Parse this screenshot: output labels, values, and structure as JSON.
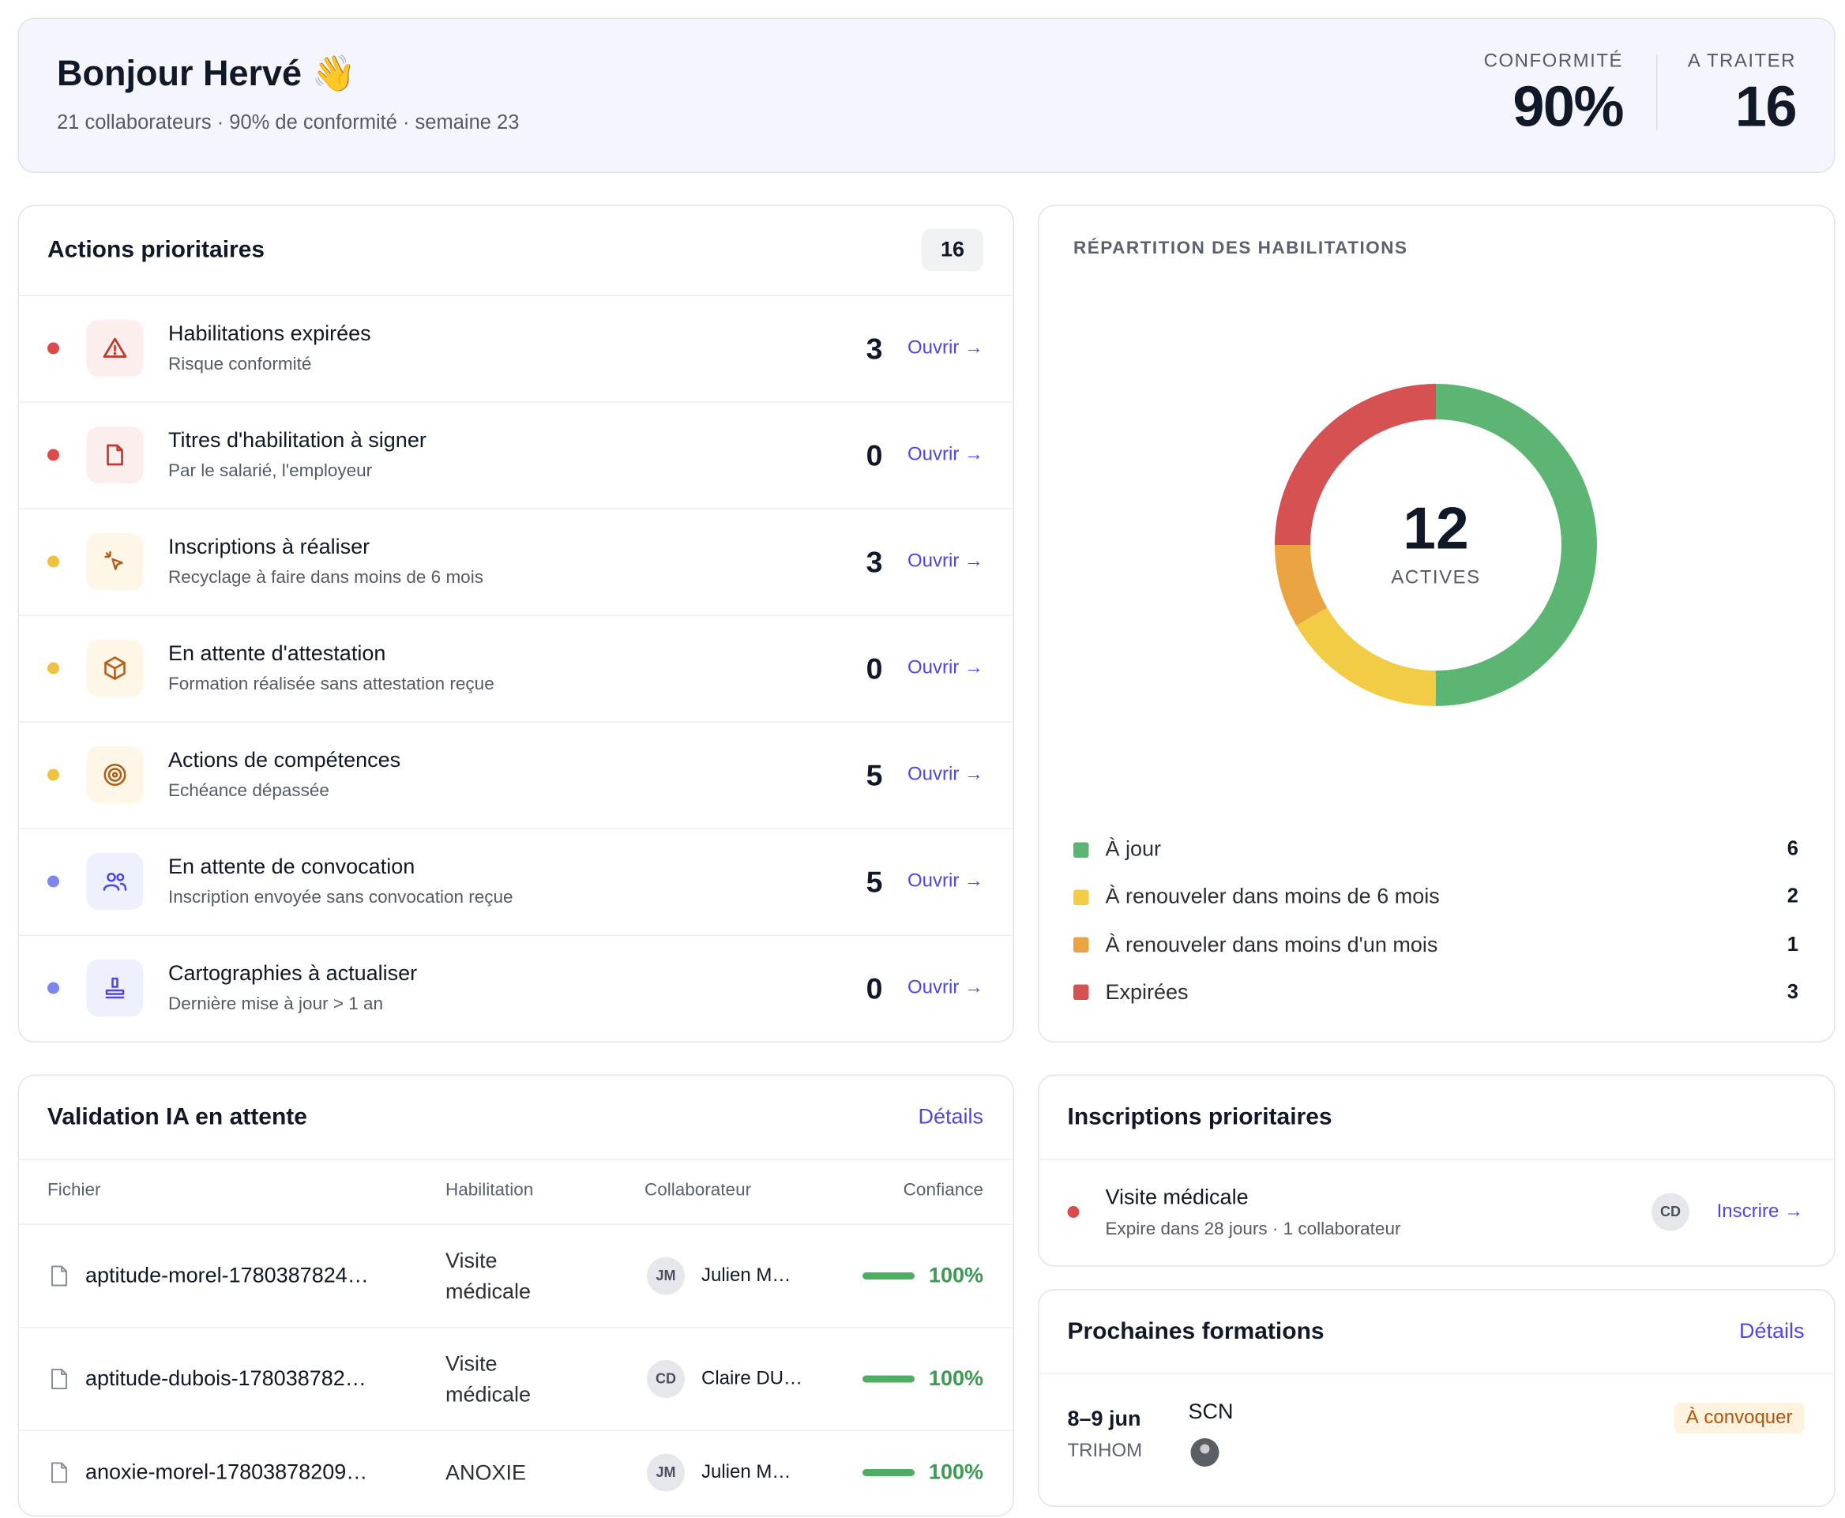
{
  "header": {
    "greeting": "Bonjour Hervé 👋",
    "subtitle": "21 collaborateurs · 90% de conformité · semaine 23",
    "kpis": [
      {
        "label": "CONFORMITÉ",
        "value": "90%"
      },
      {
        "label": "A TRAITER",
        "value": "16"
      }
    ]
  },
  "actions": {
    "title": "Actions prioritaires",
    "count": 16,
    "open_label": "Ouvrir →",
    "items": [
      {
        "title": "Habilitations expirées",
        "subtitle": "Risque conformité",
        "count": 3,
        "color": "#dc4a4a"
      },
      {
        "title": "Titres d'habilitation à signer",
        "subtitle": "Par le salarié, l'employeur",
        "count": 0,
        "color": "#dc4a4a"
      },
      {
        "title": "Inscriptions à réaliser",
        "subtitle": "Recyclage à faire dans moins de 6 mois",
        "count": 3,
        "color": "#f0c040"
      },
      {
        "title": "En attente d'attestation",
        "subtitle": "Formation réalisée sans attestation reçue",
        "count": 0,
        "color": "#f0c040"
      },
      {
        "title": "Actions de compétences",
        "subtitle": "Echéance dépassée",
        "count": 5,
        "color": "#f0c040"
      },
      {
        "title": "En attente de convocation",
        "subtitle": "Inscription envoyée sans convocation reçue",
        "count": 5,
        "color": "#7c86f0"
      },
      {
        "title": "Cartographies à actualiser",
        "subtitle": "Dernière mise à jour > 1 an",
        "count": 0,
        "color": "#7c86f0"
      }
    ]
  },
  "distribution": {
    "title": "RÉPARTITION DES HABILITATIONS",
    "total": 12,
    "total_label": "ACTIVES",
    "segments": [
      {
        "name": "À jour",
        "value": 6,
        "color": "#5db574"
      },
      {
        "name": "À renouveler dans moins de 6 mois",
        "value": 2,
        "color": "#f2cc45"
      },
      {
        "name": "À renouveler dans moins d'un mois",
        "value": 1,
        "color": "#eaa441"
      },
      {
        "name": "Expirées",
        "value": 3,
        "color": "#d65151"
      }
    ]
  },
  "validation": {
    "title": "Validation IA en attente",
    "link": "Détails",
    "columns": [
      "Fichier",
      "Habilitation",
      "Collaborateur",
      "Confiance"
    ],
    "rows": [
      {
        "file": "aptitude-morel-1780387824…",
        "habilitation": "Visite médicale",
        "initials": "JM",
        "collaborator": "Julien M…",
        "confidence": {
          "value": 100,
          "label": "100%"
        }
      },
      {
        "file": "aptitude-dubois-178038782…",
        "habilitation": "Visite médicale",
        "initials": "CD",
        "collaborator": "Claire DU…",
        "confidence": {
          "value": 100,
          "label": "100%"
        }
      },
      {
        "file": "anoxie-morel-17803878209…",
        "habilitation": "ANOXIE",
        "initials": "JM",
        "collaborator": "Julien M…",
        "confidence": {
          "value": 100,
          "label": "100%"
        }
      }
    ]
  },
  "inscriptions": {
    "title": "Inscriptions prioritaires",
    "link": "Inscrire →",
    "items": [
      {
        "title": "Visite médicale",
        "subtitle": "Expire dans 28 jours · 1 collaborateur",
        "initials": "CD",
        "color": "#dc4a4a"
      }
    ]
  },
  "trainings": {
    "title": "Prochaines formations",
    "link": "Détails",
    "items": [
      {
        "date": "8–9 jun",
        "organizer": "TRIHOM",
        "name": "SCN",
        "status": "À convoquer"
      }
    ]
  }
}
